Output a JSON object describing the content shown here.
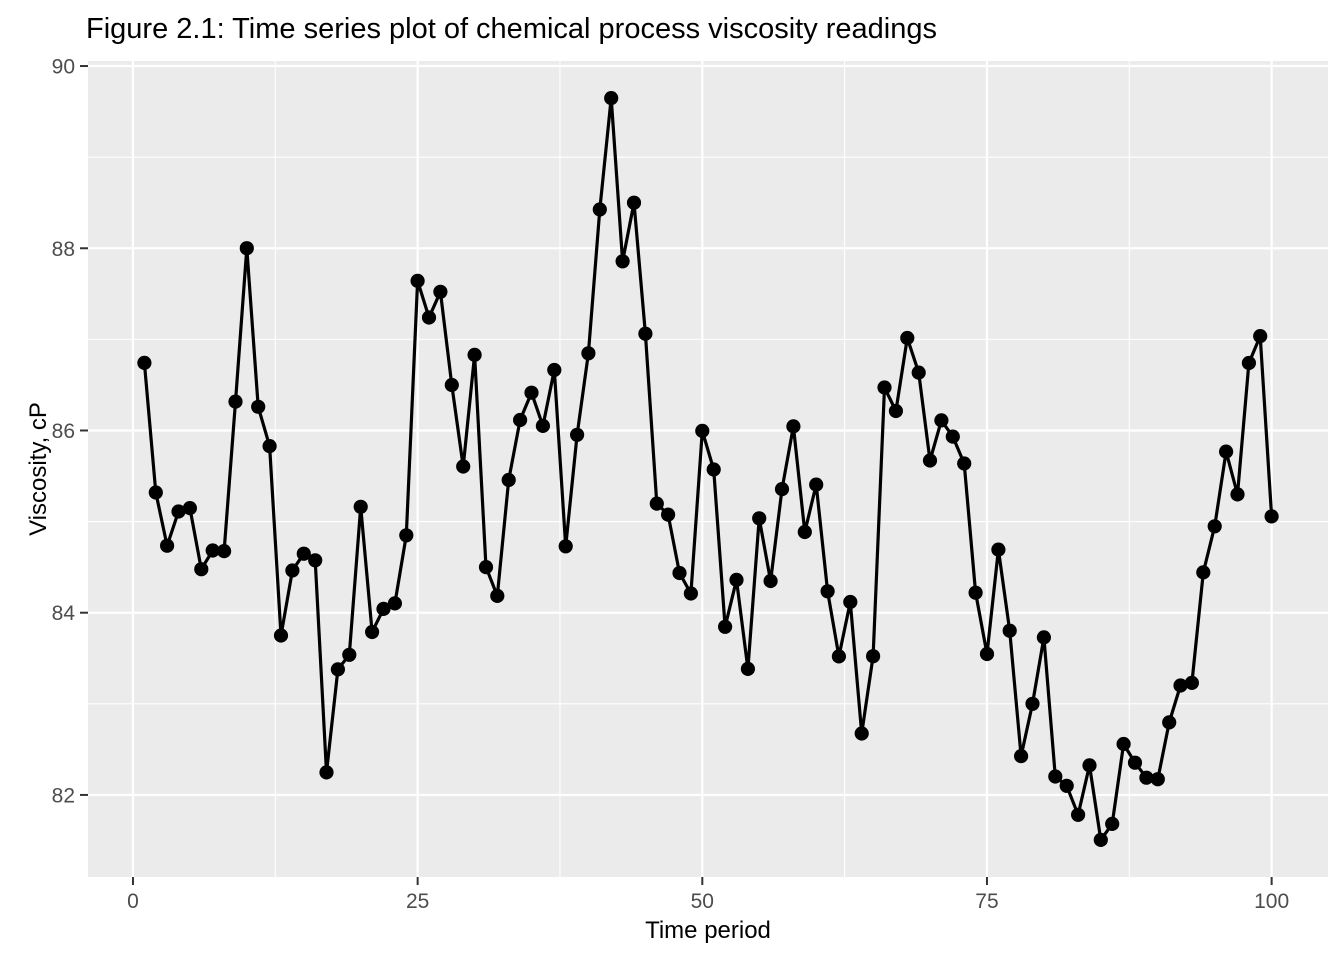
{
  "chart_data": {
    "type": "line",
    "title": "Figure 2.1: Time series plot of chemical process viscosity readings",
    "xlabel": "Time period",
    "ylabel": "Viscosity, cP",
    "legend": "none",
    "grid": "on",
    "theme": "ggplot-gray-panel",
    "marker": "filled-circle",
    "xlim": [
      -3.95,
      104.95
    ],
    "ylim": [
      81.0994,
      90.0552
    ],
    "x_major_ticks": [
      0,
      25,
      50,
      75,
      100
    ],
    "x_minor_ticks": [
      12.5,
      37.5,
      62.5,
      87.5
    ],
    "y_major_ticks": [
      82,
      84,
      86,
      88,
      90
    ],
    "y_minor_ticks": [
      83,
      85,
      87,
      89
    ],
    "x": [
      1,
      2,
      3,
      4,
      5,
      6,
      7,
      8,
      9,
      10,
      11,
      12,
      13,
      14,
      15,
      16,
      17,
      18,
      19,
      20,
      21,
      22,
      23,
      24,
      25,
      26,
      27,
      28,
      29,
      30,
      31,
      32,
      33,
      34,
      35,
      36,
      37,
      38,
      39,
      40,
      41,
      42,
      43,
      44,
      45,
      46,
      47,
      48,
      49,
      50,
      51,
      52,
      53,
      54,
      55,
      56,
      57,
      58,
      59,
      60,
      61,
      62,
      63,
      64,
      65,
      66,
      67,
      68,
      69,
      70,
      71,
      72,
      73,
      74,
      75,
      76,
      77,
      78,
      79,
      80,
      81,
      82,
      83,
      84,
      85,
      86,
      87,
      88,
      89,
      90,
      91,
      92,
      93,
      94,
      95,
      96,
      97,
      98,
      99,
      100
    ],
    "y": [
      86.7418,
      85.3195,
      84.7355,
      85.1113,
      85.1487,
      84.4775,
      84.6827,
      84.6757,
      86.3169,
      88.0006,
      86.2597,
      85.8286,
      83.75,
      84.4628,
      84.6476,
      84.5751,
      82.2473,
      83.3774,
      83.5385,
      85.162,
      83.7881,
      84.0421,
      84.1023,
      84.8495,
      87.6416,
      87.2397,
      87.5219,
      86.4992,
      85.605,
      86.8293,
      84.5004,
      84.1844,
      85.4563,
      86.1151,
      86.4142,
      86.0498,
      86.6642,
      84.7289,
      85.9523,
      86.8473,
      88.425,
      89.6481,
      87.8566,
      88.4997,
      87.0622,
      85.1973,
      85.0767,
      84.4362,
      84.2112,
      85.9952,
      85.5722,
      83.8452,
      84.3598,
      83.3834,
      85.0361,
      84.3483,
      85.3568,
      86.045,
      84.886,
      85.4065,
      84.2347,
      83.5205,
      84.1177,
      82.6745,
      83.5229,
      86.4714,
      86.2143,
      87.0152,
      86.6357,
      85.6708,
      86.1106,
      85.9333,
      85.638,
      84.2198,
      83.5473,
      84.6929,
      83.8021,
      82.426,
      82.9998,
      83.729,
      82.2026,
      82.1008,
      81.7824,
      82.3246,
      81.5065,
      81.6824,
      82.5593,
      82.354,
      82.1889,
      82.1731,
      82.7966,
      83.2016,
      83.2296,
      84.442,
      84.948,
      85.7686,
      85.2983,
      86.7407,
      87.036,
      85.0572
    ],
    "colors": {
      "page_bg": "#FFFFFF",
      "panel_bg": "#EBEBEB",
      "grid": "#FFFFFF",
      "series": "#000000",
      "tick_mark": "#333333",
      "tick_label": "#4D4D4D",
      "title": "#000000"
    }
  }
}
